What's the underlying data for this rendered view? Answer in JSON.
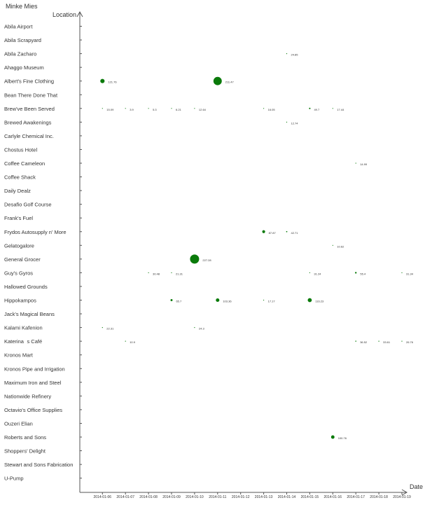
{
  "chart_data": {
    "type": "scatter",
    "title": "Minke Mies",
    "ylabel": "Location",
    "xlabel": "Date",
    "bubble_color": "#0a7a0a",
    "grid": false,
    "locations": [
      "Abila Airport",
      "Abila Scrapyard",
      "Abila Zacharo",
      "Ahaggo Museum",
      "Albert's Fine Clothing",
      "Bean There Done That",
      "Brew've Been Served",
      "Brewed Awakenings",
      "Carlyle Chemical Inc.",
      "Chostus Hotel",
      "Coffee Cameleon",
      "Coffee Shack",
      "Daily Dealz",
      "Desafio Golf Course",
      "Frank's Fuel",
      "Frydos Autosupply n' More",
      "Gelatogalore",
      "General Grocer",
      "Guy's Gyros",
      "Hallowed Grounds",
      "Hippokampos",
      "Jack's Magical Beans",
      "Kalami Kafenion",
      "Katerinas Café",
      "Kronos Mart",
      "Kronos Pipe and Irrigation",
      "Maximum Iron and Steel",
      "Nationwide Refinery",
      "Octavio's Office Supplies",
      "Ouzeri Elian",
      "Roberts and Sons",
      "Shoppers' Delight",
      "Stewart and Sons Fabrication",
      "U-Pump"
    ],
    "dates": [
      "2014-01-06",
      "2014-01-07",
      "2014-01-08",
      "2014-01-09",
      "2014-01-10",
      "2014-01-11",
      "2014-01-12",
      "2014-01-13",
      "2014-01-14",
      "2014-01-15",
      "2014-01-16",
      "2014-01-17",
      "2014-01-18",
      "2014-01-19"
    ],
    "points": [
      {
        "location": "Abila Zacharo",
        "date": "2014-01-14",
        "value": 24.85,
        "label": "24.85"
      },
      {
        "location": "Albert's Fine Clothing",
        "date": "2014-01-06",
        "value": 121.76,
        "label": "121.76"
      },
      {
        "location": "Albert's Fine Clothing",
        "date": "2014-01-11",
        "value": 211.47,
        "label": "211.47"
      },
      {
        "location": "Brew've Been Served",
        "date": "2014-01-06",
        "value": 15.09,
        "label": "15.09"
      },
      {
        "location": "Brew've Been Served",
        "date": "2014-01-07",
        "value": 3.9,
        "label": "3.9"
      },
      {
        "location": "Brew've Been Served",
        "date": "2014-01-08",
        "value": 5.3,
        "label": "5.3"
      },
      {
        "location": "Brew've Been Served",
        "date": "2014-01-09",
        "value": 6.21,
        "label": "6.21"
      },
      {
        "location": "Brew've Been Served",
        "date": "2014-01-10",
        "value": 12.64,
        "label": "12.64"
      },
      {
        "location": "Brew've Been Served",
        "date": "2014-01-13",
        "value": 16.05,
        "label": "16.05"
      },
      {
        "location": "Brew've Been Served",
        "date": "2014-01-15",
        "value": 49.7,
        "label": "49.7"
      },
      {
        "location": "Brew've Been Served",
        "date": "2014-01-16",
        "value": 17.44,
        "label": "17.44"
      },
      {
        "location": "Brewed Awakenings",
        "date": "2014-01-14",
        "value": 12.74,
        "label": "12.74"
      },
      {
        "location": "Coffee Cameleon",
        "date": "2014-01-17",
        "value": 14.99,
        "label": "14.99"
      },
      {
        "location": "Frydos Autosupply n' More",
        "date": "2014-01-13",
        "value": 87.87,
        "label": "87.87"
      },
      {
        "location": "Frydos Autosupply n' More",
        "date": "2014-01-14",
        "value": 42.71,
        "label": "42.71"
      },
      {
        "location": "Gelatogalore",
        "date": "2014-01-16",
        "value": 10.62,
        "label": "10.62"
      },
      {
        "location": "General Grocer",
        "date": "2014-01-10",
        "value": 227.28,
        "label": "227.28"
      },
      {
        "location": "Guy's Gyros",
        "date": "2014-01-08",
        "value": 30.48,
        "label": "30.48"
      },
      {
        "location": "Guy's Gyros",
        "date": "2014-01-09",
        "value": 21.31,
        "label": "21.31"
      },
      {
        "location": "Guy's Gyros",
        "date": "2014-01-15",
        "value": 31.24,
        "label": "31.24"
      },
      {
        "location": "Guy's Gyros",
        "date": "2014-01-17",
        "value": 55.4,
        "label": "55.4"
      },
      {
        "location": "Guy's Gyros",
        "date": "2014-01-19",
        "value": 31.34,
        "label": "31.34"
      },
      {
        "location": "Hippokampos",
        "date": "2014-01-09",
        "value": 65.7,
        "label": "65.7"
      },
      {
        "location": "Hippokampos",
        "date": "2014-01-11",
        "value": 103.36,
        "label": "103.36"
      },
      {
        "location": "Hippokampos",
        "date": "2014-01-13",
        "value": 17.17,
        "label": "17.17"
      },
      {
        "location": "Hippokampos",
        "date": "2014-01-15",
        "value": 116.23,
        "label": "116.23"
      },
      {
        "location": "Kalami Kafenion",
        "date": "2014-01-06",
        "value": 22.31,
        "label": "22.31"
      },
      {
        "location": "Kalami Kafenion",
        "date": "2014-01-10",
        "value": 24.3,
        "label": "24.3"
      },
      {
        "location": "Katerinas Café",
        "date": "2014-01-07",
        "value": 10.9,
        "label": "10.9"
      },
      {
        "location": "Katerinas Café",
        "date": "2014-01-17",
        "value": 36.52,
        "label": "36.52"
      },
      {
        "location": "Katerinas Café",
        "date": "2014-01-18",
        "value": 33.61,
        "label": "33.61"
      },
      {
        "location": "Katerinas Café",
        "date": "2014-01-19",
        "value": 26.76,
        "label": "26.76"
      },
      {
        "location": "Roberts and Sons",
        "date": "2014-01-16",
        "value": 100.76,
        "label": "100.76"
      }
    ]
  }
}
